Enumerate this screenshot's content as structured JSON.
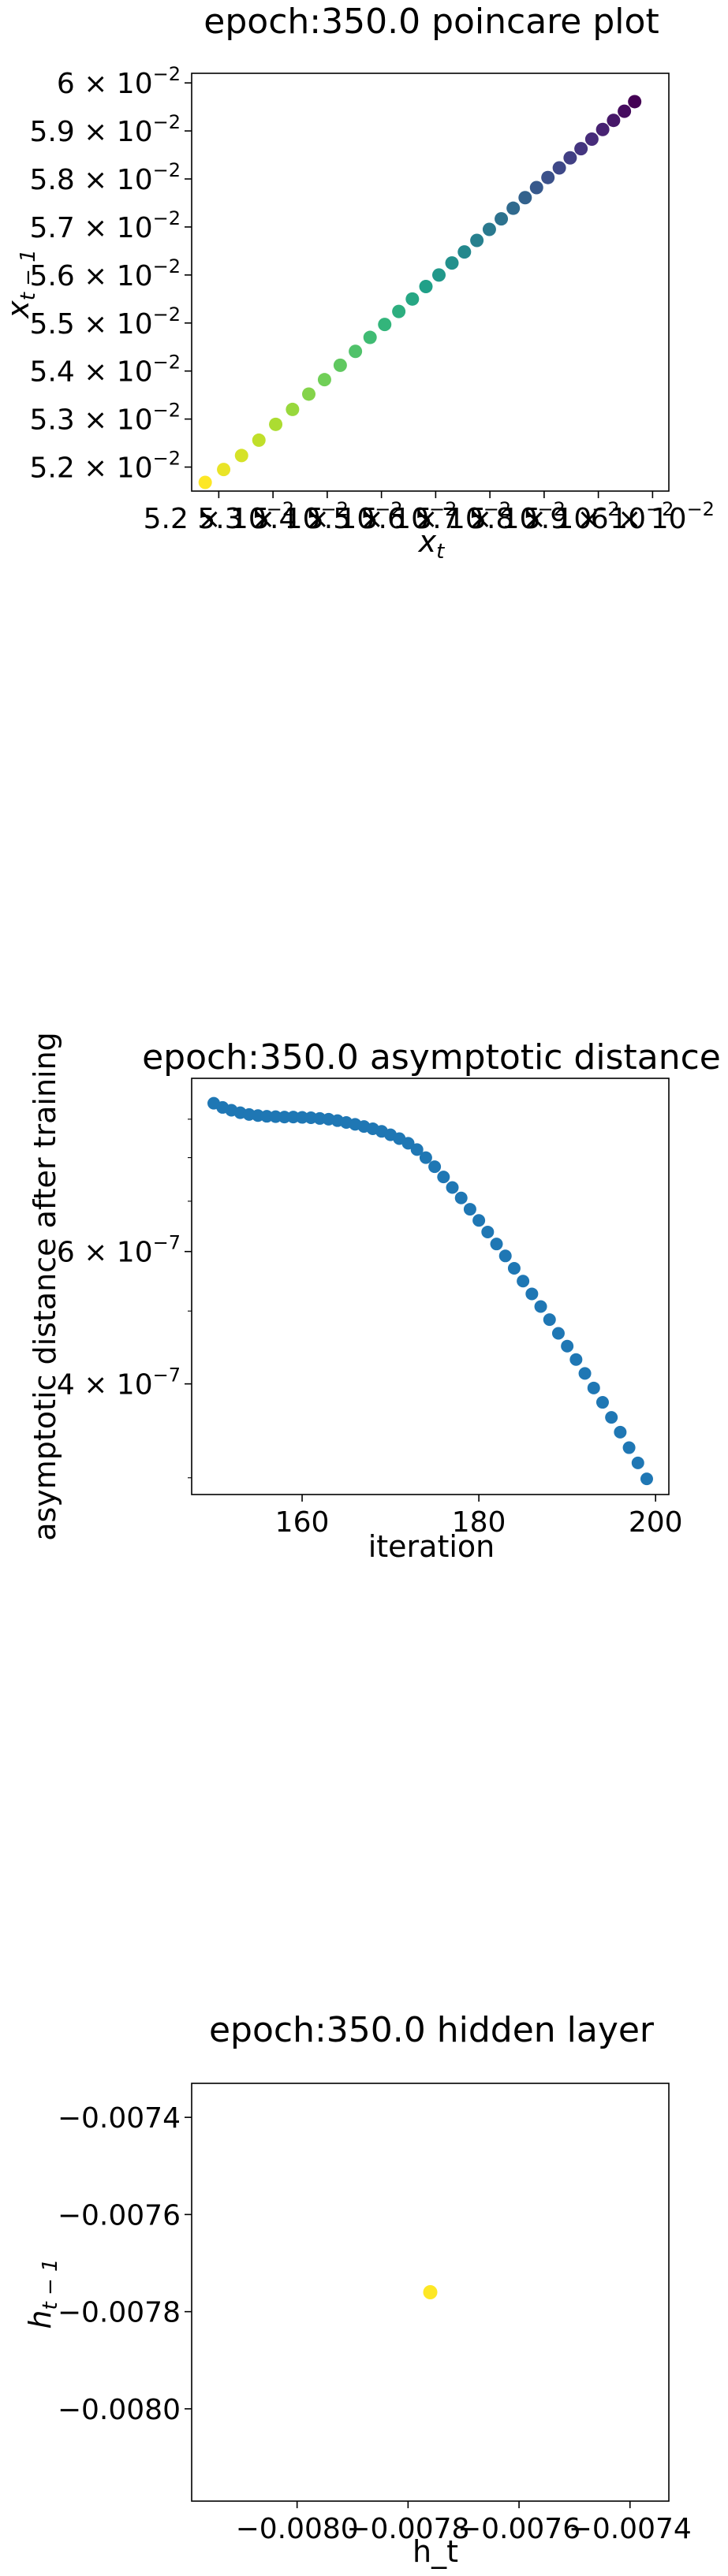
{
  "chart_data": [
    {
      "type": "scatter",
      "title": "epoch:350.0 poincare plot",
      "xlabel": "x_t",
      "ylabel": "x_{t-1}",
      "xlim": [
        0.0515,
        0.0603
      ],
      "ylim": [
        0.0515,
        0.0602
      ],
      "colormap": "viridis",
      "color_order": "high-to-low",
      "x_tick_values": [
        0.052,
        0.053,
        0.054,
        0.055,
        0.056,
        0.057,
        0.058,
        0.059,
        0.06
      ],
      "x_tick_mantissas": [
        "5.2",
        "5.3",
        "5.4",
        "5.5",
        "5.6",
        "5.7",
        "5.8",
        "5.9",
        "6"
      ],
      "y_tick_values": [
        0.052,
        0.053,
        0.054,
        0.055,
        0.056,
        0.057,
        0.058,
        0.059,
        0.06
      ],
      "y_tick_mantissas": [
        "5.2",
        "5.3",
        "5.4",
        "5.5",
        "5.6",
        "5.7",
        "5.8",
        "5.9",
        "6"
      ],
      "tick_base": "10",
      "tick_exponent": "−2",
      "x": [
        0.05175,
        0.05209,
        0.05242,
        0.05274,
        0.05305,
        0.05336,
        0.05366,
        0.05395,
        0.05424,
        0.05452,
        0.05479,
        0.05506,
        0.05532,
        0.05557,
        0.05582,
        0.05606,
        0.0563,
        0.05653,
        0.05676,
        0.05699,
        0.05721,
        0.05743,
        0.05765,
        0.05786,
        0.05807,
        0.05828,
        0.05848,
        0.05868,
        0.05888,
        0.05908,
        0.05928,
        0.05948,
        0.05967
      ],
      "y": [
        0.05168,
        0.05195,
        0.05224,
        0.05256,
        0.05289,
        0.0532,
        0.05352,
        0.05382,
        0.05412,
        0.05441,
        0.0547,
        0.05497,
        0.05524,
        0.0555,
        0.05576,
        0.056,
        0.05625,
        0.05648,
        0.05672,
        0.05695,
        0.05717,
        0.05739,
        0.05761,
        0.05782,
        0.05803,
        0.05823,
        0.05844,
        0.05863,
        0.05883,
        0.05903,
        0.05922,
        0.05941,
        0.05961
      ]
    },
    {
      "type": "scatter",
      "title": "epoch:350.0 asymptotic distance",
      "xlabel": "iteration",
      "ylabel": "asymptotic distance after training",
      "yscale": "log",
      "xlim": [
        147.5,
        201.5
      ],
      "ylim": [
        2.85e-07,
        1.02e-06
      ],
      "color": "#1f77b4",
      "x_ticks": [
        160,
        180,
        200
      ],
      "y_tick_values": [
        4e-07,
        6e-07
      ],
      "y_tick_mantissas": [
        "4",
        "6"
      ],
      "tick_base": "10",
      "tick_exponent": "−7",
      "x": [
        150,
        151,
        152,
        153,
        154,
        155,
        156,
        157,
        158,
        159,
        160,
        161,
        162,
        163,
        164,
        165,
        166,
        167,
        168,
        169,
        170,
        171,
        172,
        173,
        174,
        175,
        176,
        177,
        178,
        179,
        180,
        181,
        182,
        183,
        184,
        185,
        186,
        187,
        188,
        189,
        190,
        191,
        192,
        193,
        194,
        195,
        196,
        197,
        198,
        199
      ],
      "y": [
        9.45e-07,
        9.33e-07,
        9.25e-07,
        9.18e-07,
        9.13e-07,
        9.1e-07,
        9.08e-07,
        9.07e-07,
        9.06e-07,
        9.06e-07,
        9.05e-07,
        9.04e-07,
        9.02e-07,
        9e-07,
        8.96e-07,
        8.91e-07,
        8.86e-07,
        8.8e-07,
        8.74e-07,
        8.67e-07,
        8.58e-07,
        8.48e-07,
        8.36e-07,
        8.2e-07,
        8e-07,
        7.78e-07,
        7.54e-07,
        7.3e-07,
        7.07e-07,
        6.83e-07,
        6.6e-07,
        6.37e-07,
        6.14e-07,
        5.92e-07,
        5.7e-07,
        5.48e-07,
        5.27e-07,
        5.07e-07,
        4.87e-07,
        4.67e-07,
        4.49e-07,
        4.31e-07,
        4.13e-07,
        3.95e-07,
        3.78e-07,
        3.61e-07,
        3.45e-07,
        3.29e-07,
        3.14e-07,
        2.99e-07
      ]
    },
    {
      "type": "scatter",
      "title": "epoch:350.0 hidden layer",
      "xlabel": "h_t",
      "ylabel": "h_{t-1}",
      "xlim": [
        -0.00819,
        -0.00733
      ],
      "ylim": [
        -0.00819,
        -0.00733
      ],
      "color": "#fde725",
      "x_ticks": [
        -0.008,
        -0.0078,
        -0.0076,
        -0.0074
      ],
      "x_tick_labels": [
        "−0.0080",
        "−0.0078",
        "−0.0076",
        "−0.0074"
      ],
      "y_ticks": [
        -0.0074,
        -0.0076,
        -0.0078,
        -0.008
      ],
      "y_tick_labels": [
        "−0.0074",
        "−0.0076",
        "−0.0078",
        "−0.0080"
      ],
      "x": [
        -0.00776
      ],
      "y": [
        -0.00776
      ]
    }
  ]
}
